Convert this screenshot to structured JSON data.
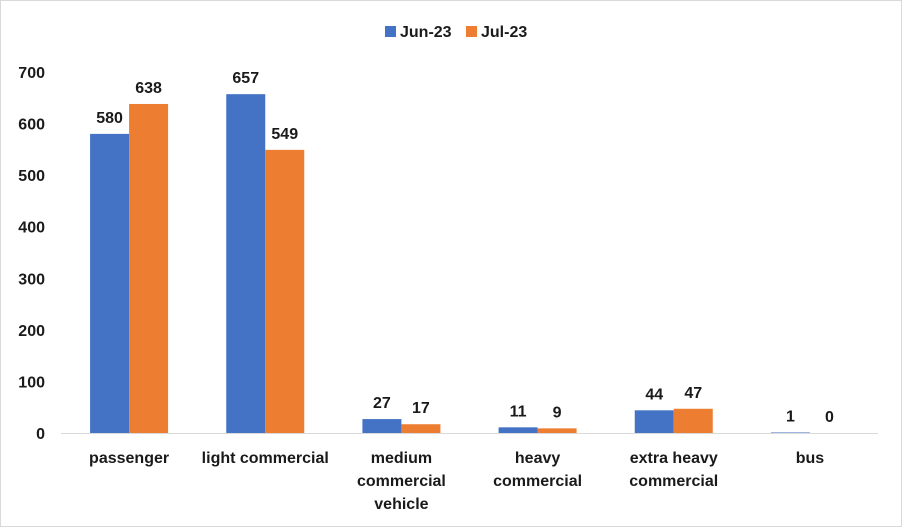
{
  "chart_data": {
    "type": "bar",
    "title": "",
    "xlabel": "",
    "ylabel": "",
    "categories": [
      [
        "passenger"
      ],
      [
        "light commercial"
      ],
      [
        "medium",
        "commercial",
        "vehicle"
      ],
      [
        "heavy",
        "commercial"
      ],
      [
        "extra heavy",
        "commercial"
      ],
      [
        "bus"
      ]
    ],
    "series": [
      {
        "name": "Jun-23",
        "color": "#4472C4",
        "values": [
          580,
          657,
          27,
          11,
          44,
          1
        ]
      },
      {
        "name": "Jul-23",
        "color": "#ED7D31",
        "values": [
          638,
          549,
          17,
          9,
          47,
          0
        ]
      }
    ],
    "ylim": [
      0,
      700
    ],
    "yticks": [
      0,
      100,
      200,
      300,
      400,
      500,
      600,
      700
    ],
    "grid": false,
    "legend_position": "top-center",
    "data_labels": true
  }
}
